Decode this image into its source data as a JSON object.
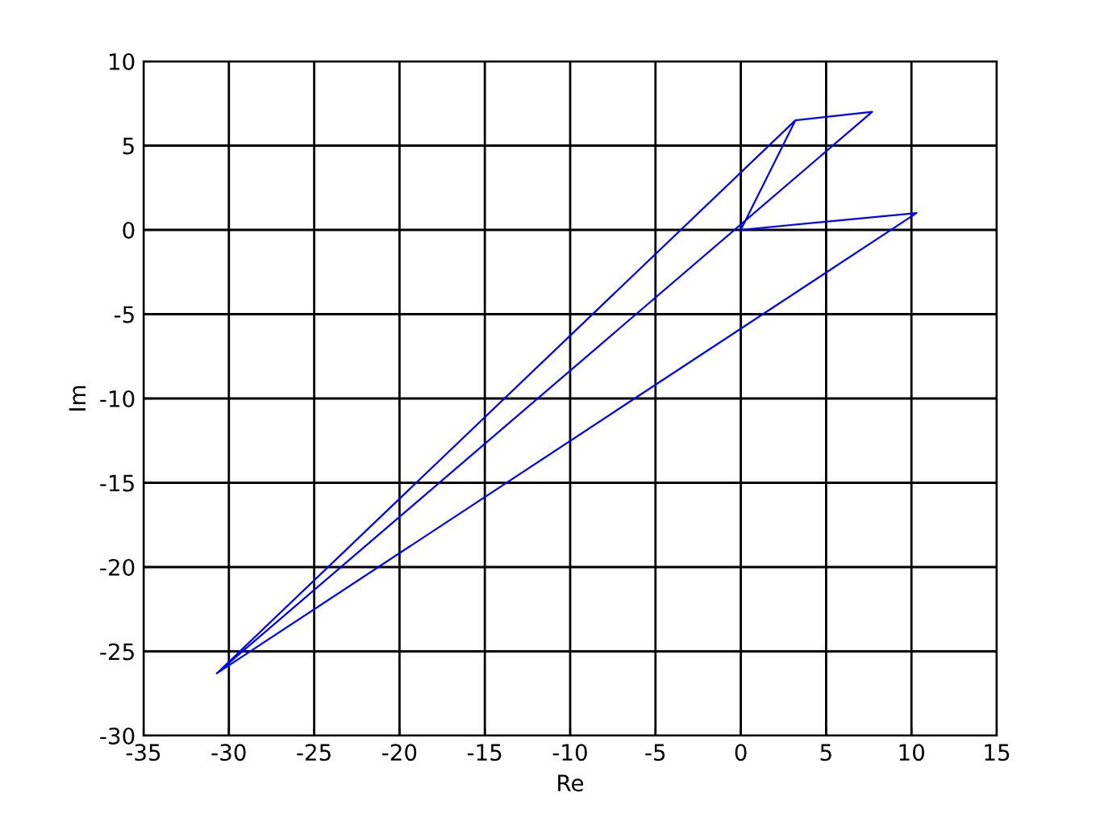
{
  "chart_data": {
    "type": "line",
    "xlabel": "Re",
    "ylabel": "Im",
    "series": [
      {
        "color": "#0000ff",
        "x": [
          3.2,
          0,
          10.3,
          -30.7,
          7.7,
          3.2,
          -30.7
        ],
        "values": [
          6.5,
          0,
          1.0,
          -26.3,
          7.0,
          6.5,
          -26.3
        ]
      }
    ],
    "xlim": [
      -35,
      15
    ],
    "xticks": [
      -35,
      -30,
      -25,
      -20,
      -15,
      -10,
      -5,
      0,
      5,
      10,
      15
    ],
    "ylim": [
      -30,
      10
    ],
    "yticks": [
      -30,
      -25,
      -20,
      -15,
      -10,
      -5,
      0,
      5,
      10
    ],
    "grid": true,
    "marker": "none",
    "line_style": "solid"
  }
}
